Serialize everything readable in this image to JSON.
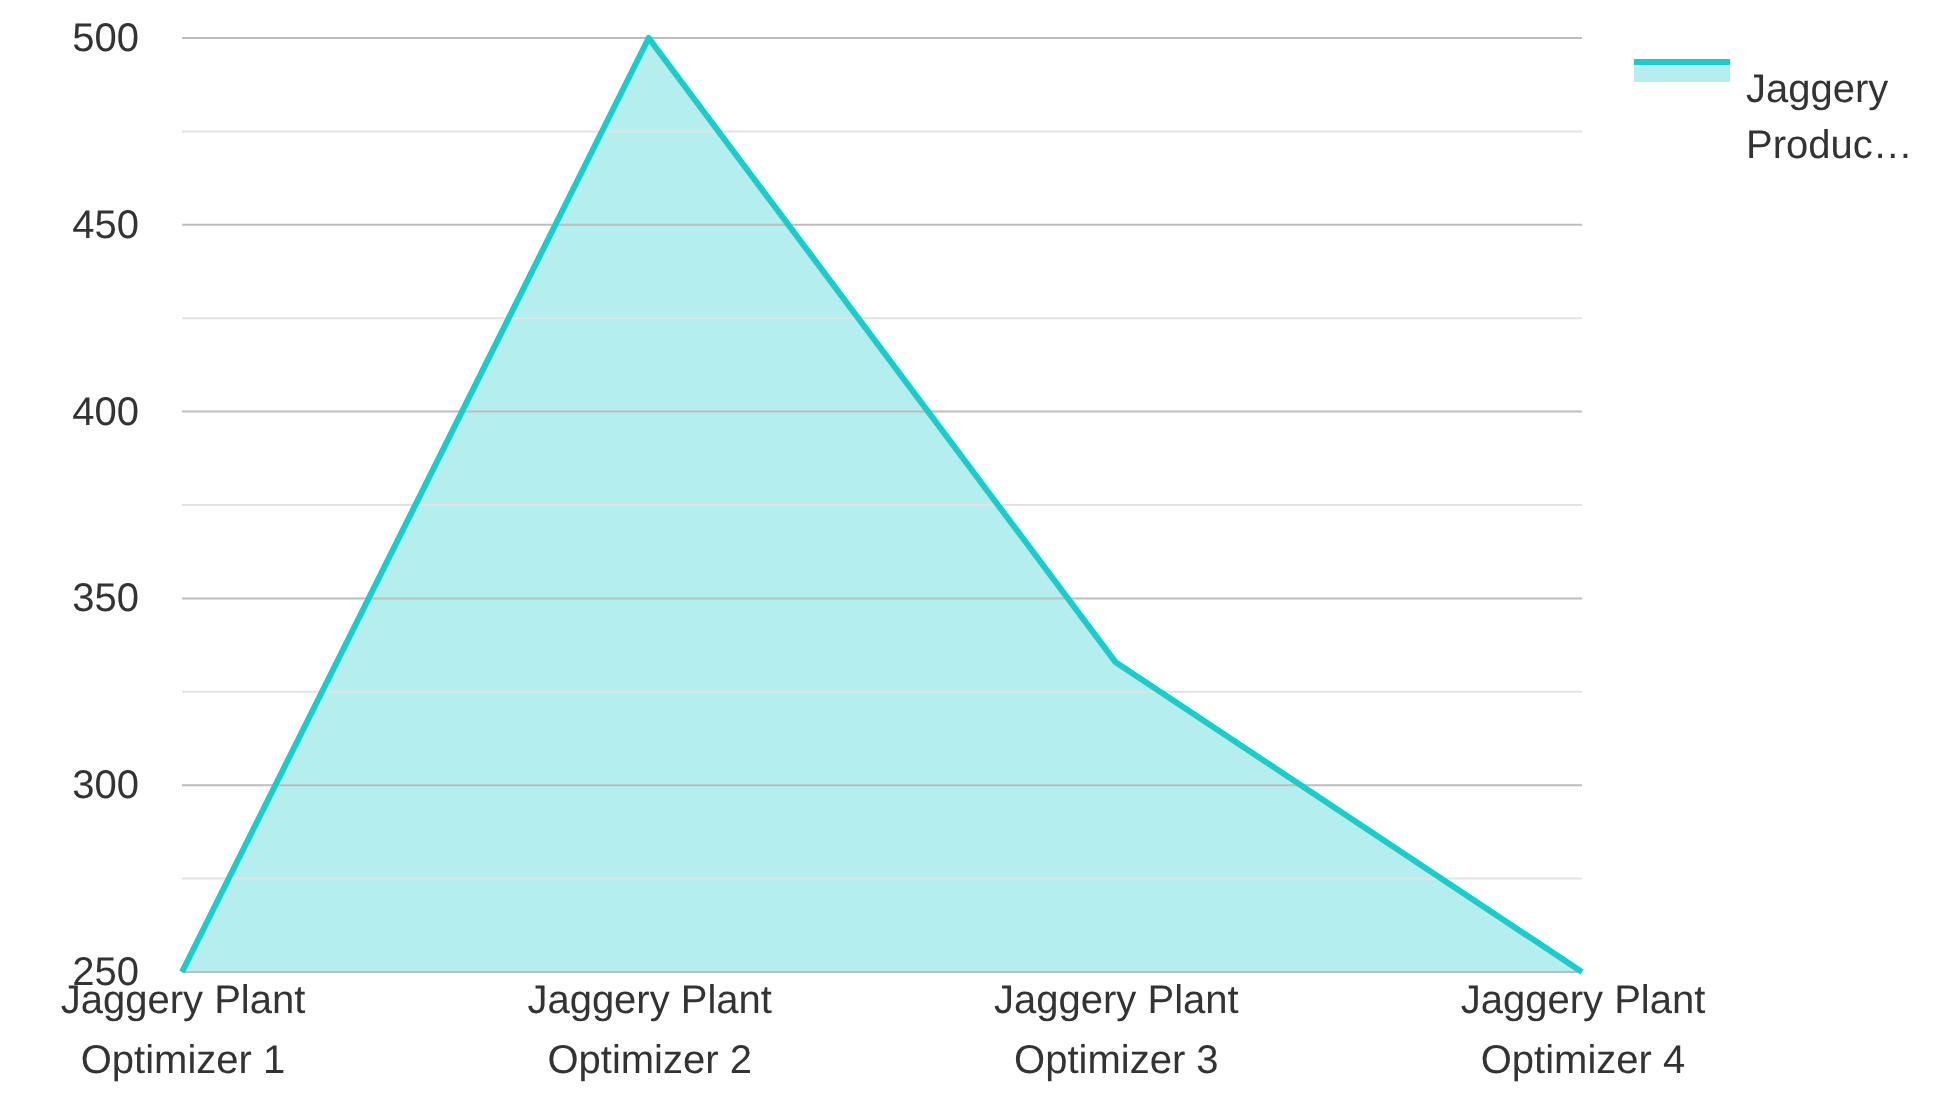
{
  "chart_data": {
    "type": "area",
    "categories": [
      "Jaggery Plant Optimizer 1",
      "Jaggery Plant Optimizer 2",
      "Jaggery Plant Optimizer 3",
      "Jaggery Plant Optimizer 4"
    ],
    "series": [
      {
        "name": "Jaggery Produc…",
        "color": "#1ecbcb",
        "values": [
          250,
          500,
          333,
          250
        ]
      }
    ],
    "ylim": [
      250,
      500
    ],
    "yticks": [
      250,
      {
        "value": 275,
        "label": null
      },
      300,
      {
        "value": 325,
        "label": null
      },
      350,
      {
        "value": 375,
        "label": null
      },
      400,
      {
        "value": 425,
        "label": null
      },
      450,
      {
        "value": 475,
        "label": null
      },
      500
    ],
    "grid": "y",
    "legend": "top right"
  }
}
